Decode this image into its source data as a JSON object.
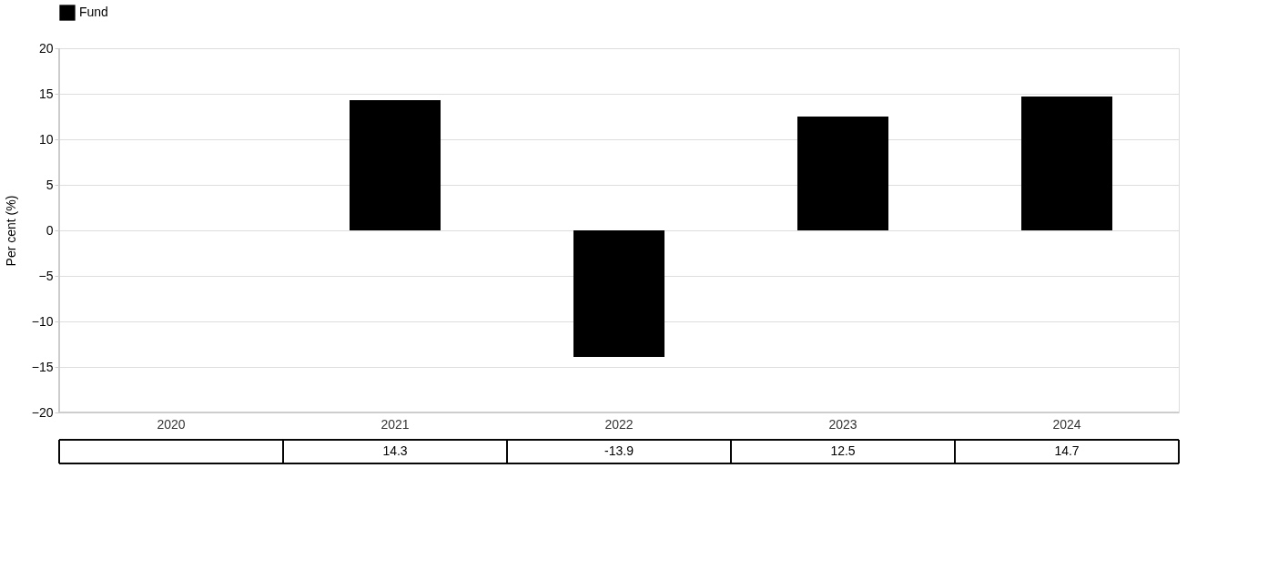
{
  "chart_data": {
    "type": "bar",
    "ylabel": "Per cent (%)",
    "categories": [
      "2020",
      "2021",
      "2022",
      "2023",
      "2024"
    ],
    "series": [
      {
        "name": "Fund",
        "color": "#000000",
        "values": [
          null,
          14.3,
          -13.9,
          12.5,
          14.7
        ]
      }
    ],
    "ylim": [
      -20,
      20
    ],
    "yticks": [
      -20,
      -15,
      -10,
      -5,
      0,
      5,
      10,
      15,
      20
    ],
    "grid": "y",
    "legend": "top left",
    "data_labels": true
  }
}
